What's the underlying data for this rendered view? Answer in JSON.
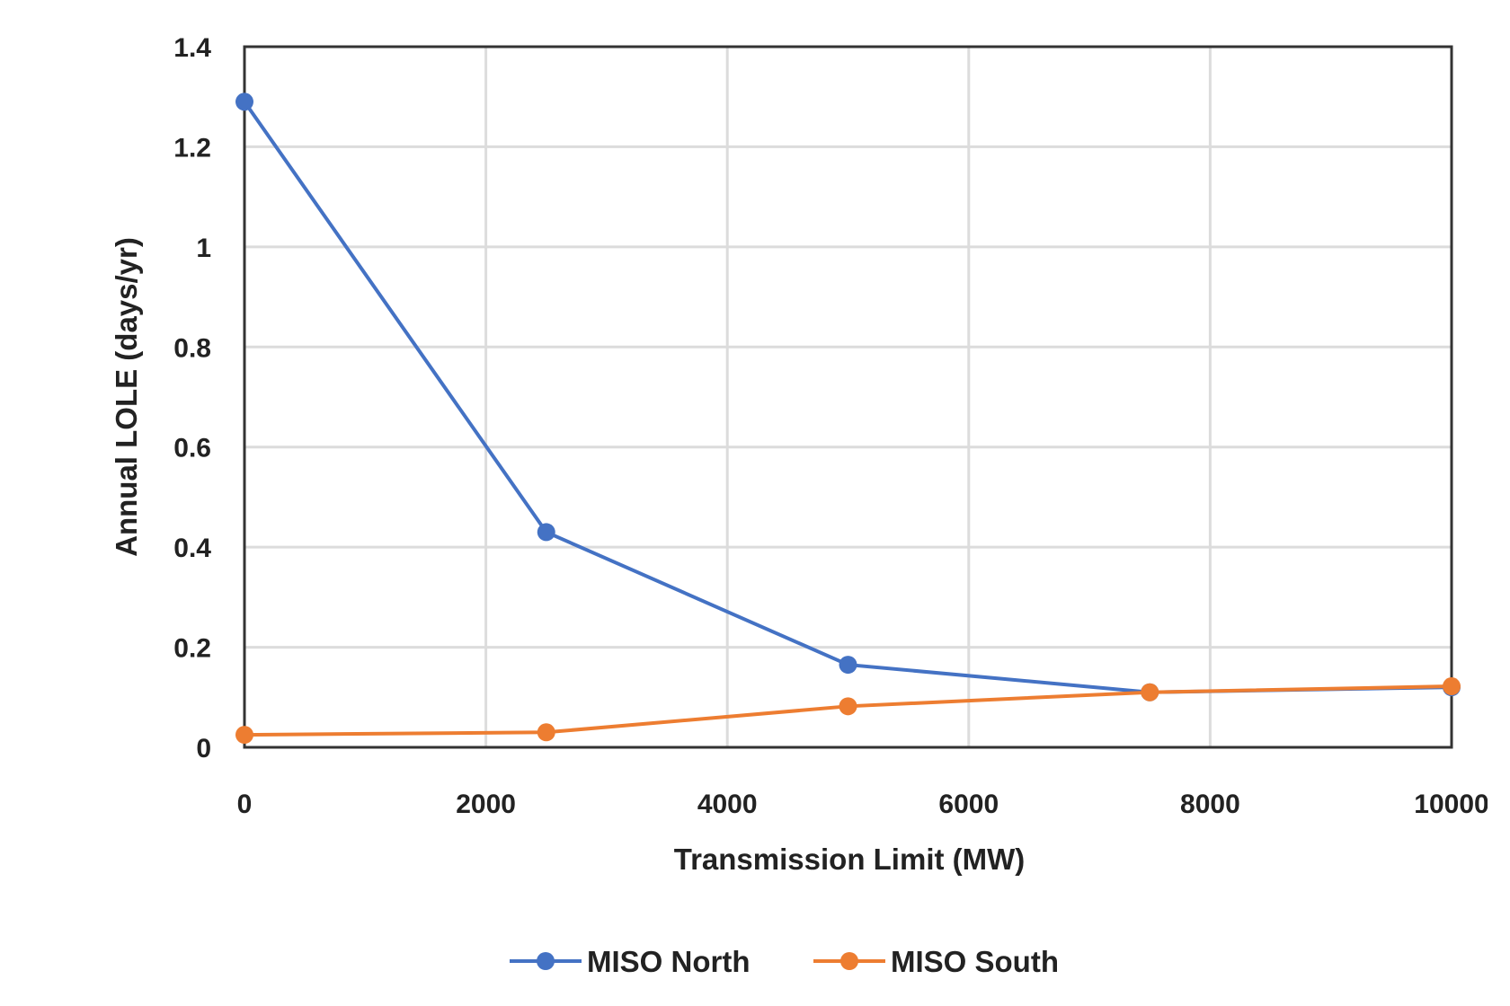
{
  "chart_data": {
    "type": "line",
    "title": "",
    "xlabel": "Transmission Limit (MW)",
    "ylabel": "Annual LOLE (days/yr)",
    "xlim": [
      0,
      10000
    ],
    "ylim": [
      0,
      1.4
    ],
    "x_ticks": [
      "0",
      "2000",
      "4000",
      "6000",
      "8000",
      "10000"
    ],
    "y_ticks": [
      "0",
      "0.2",
      "0.4",
      "0.6",
      "0.8",
      "1",
      "1.2",
      "1.4"
    ],
    "grid": true,
    "legend_position": "bottom",
    "x": [
      0,
      2500,
      5000,
      7500,
      10000
    ],
    "series": [
      {
        "name": "MISO North",
        "color": "#4472c4",
        "values": [
          1.29,
          0.43,
          0.165,
          0.11,
          0.12
        ]
      },
      {
        "name": "MISO South",
        "color": "#ed7d31",
        "values": [
          0.025,
          0.03,
          0.082,
          0.11,
          0.122
        ]
      }
    ]
  }
}
